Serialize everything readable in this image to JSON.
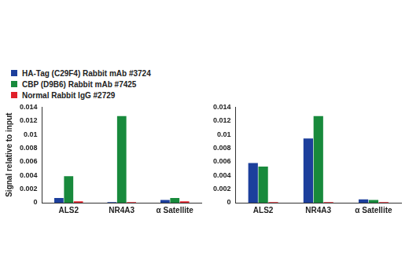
{
  "chart_data": [
    {
      "type": "bar",
      "ylabel": "Signal relative to input",
      "categories": [
        "ALS2",
        "NR4A3",
        "α Satellite"
      ],
      "series": [
        {
          "name": "HA-Tag (C29F4) Rabbit mAb #3724",
          "color": "#1c3f9c",
          "values": [
            0.0007,
            0.0001,
            0.0004
          ]
        },
        {
          "name": "CBP (D9B6) Rabbit mAb #7425",
          "color": "#188a3c",
          "values": [
            0.0039,
            0.0127,
            0.0007
          ]
        },
        {
          "name": "Normal Rabbit IgG #2729",
          "color": "#e0202a",
          "values": [
            0.0002,
            0.0001,
            0.0002
          ]
        }
      ],
      "ylim": [
        0,
        0.014
      ],
      "yticks": [
        0,
        0.002,
        0.004,
        0.006,
        0.008,
        0.01,
        0.012,
        0.014
      ],
      "grid": false,
      "legend": "top-left"
    },
    {
      "type": "bar",
      "categories": [
        "ALS2",
        "NR4A3",
        "α Satellite"
      ],
      "series": [
        {
          "name": "HA-Tag (C29F4) Rabbit mAb #3724",
          "color": "#1c3f9c",
          "values": [
            0.0058,
            0.0094,
            0.0005
          ]
        },
        {
          "name": "CBP (D9B6) Rabbit mAb #7425",
          "color": "#188a3c",
          "values": [
            0.0053,
            0.0127,
            0.0004
          ]
        },
        {
          "name": "Normal Rabbit IgG #2729",
          "color": "#e0202a",
          "values": [
            0.0001,
            0.0001,
            0.0001
          ]
        }
      ],
      "ylim": [
        0,
        0.014
      ],
      "yticks": [
        0,
        0.002,
        0.004,
        0.006,
        0.008,
        0.01,
        0.012,
        0.014
      ],
      "grid": false,
      "legend": false
    }
  ]
}
